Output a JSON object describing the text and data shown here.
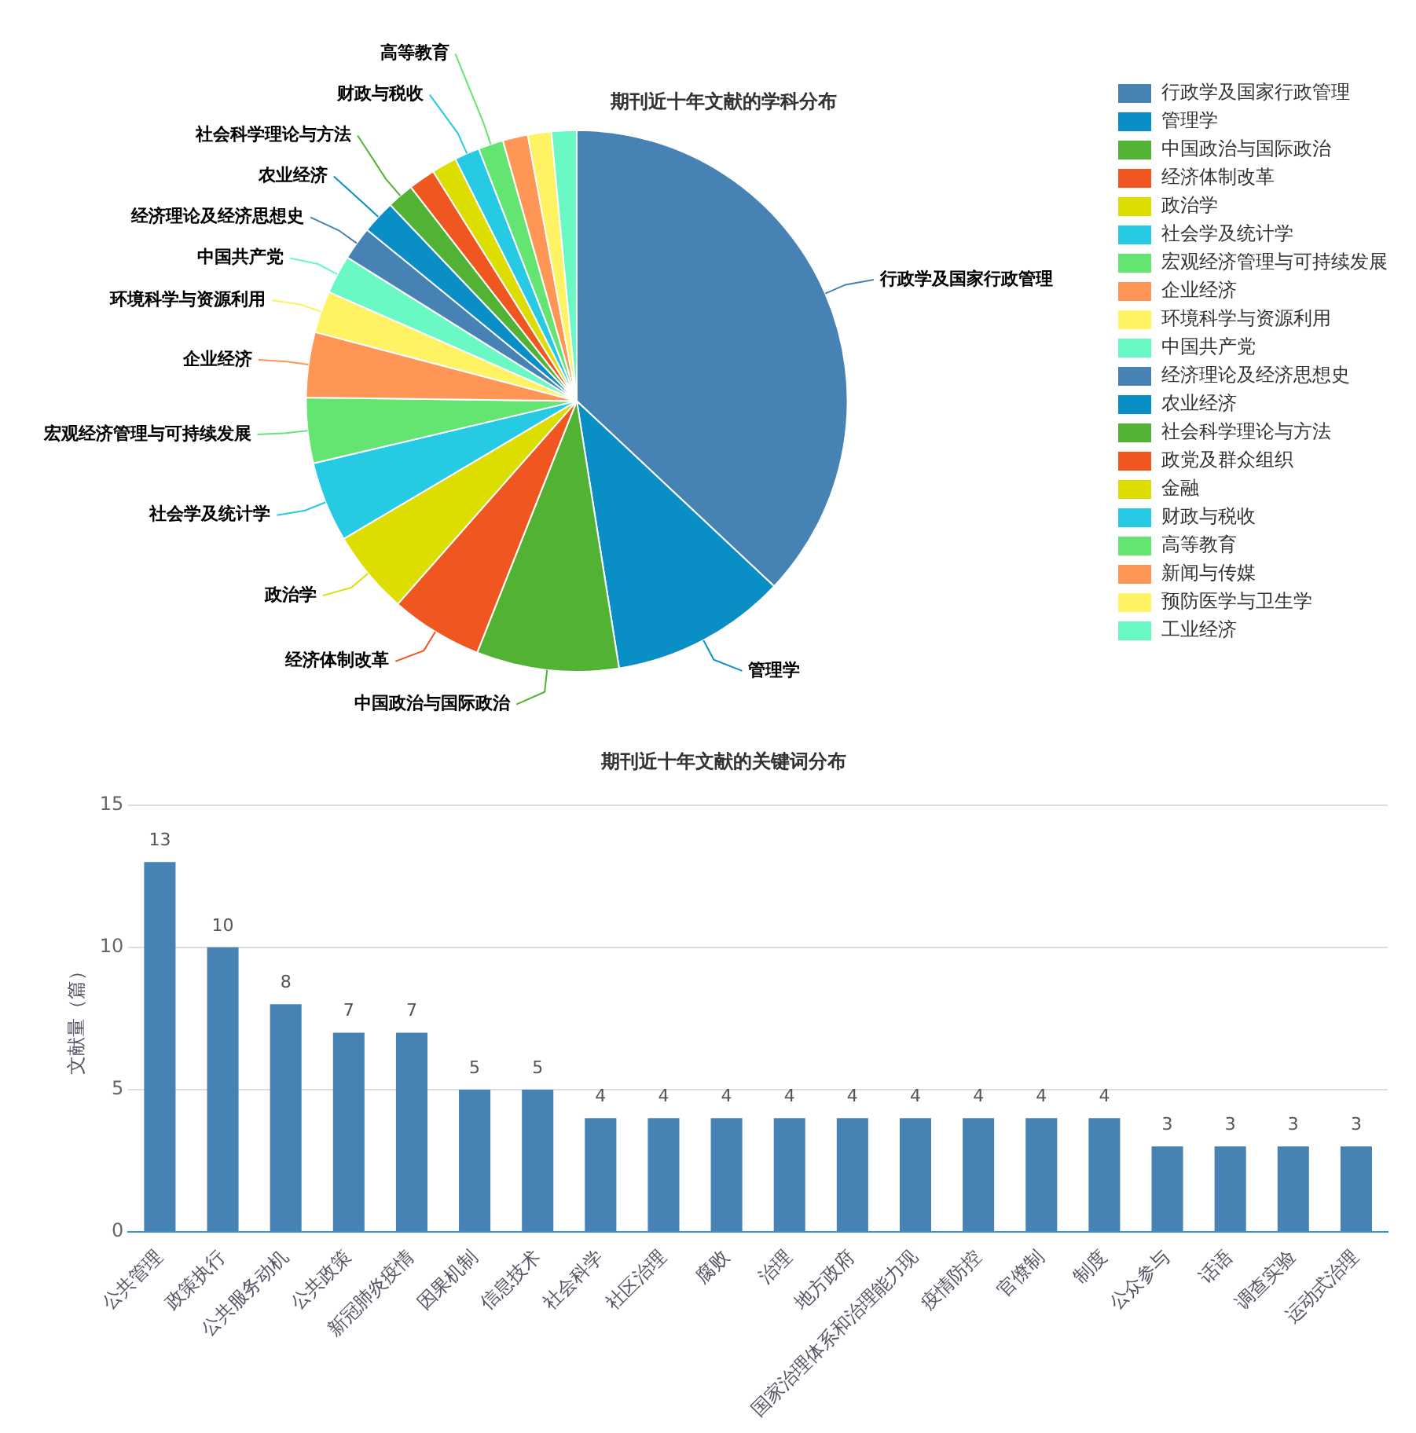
{
  "chart_data": [
    {
      "type": "pie",
      "title": "期刊近十年文献的学科分布",
      "legend": "right",
      "categories": [
        "行政学及国家行政管理",
        "管理学",
        "中国政治与国际政治",
        "经济体制改革",
        "政治学",
        "社会学及统计学",
        "宏观经济管理与可持续发展",
        "企业经济",
        "环境科学与资源利用",
        "中国共产党",
        "经济理论及经济思想史",
        "农业经济",
        "社会科学理论与方法",
        "政党及群众组织",
        "金融",
        "财政与税收",
        "高等教育",
        "新闻与传媒",
        "预防医学与卫生学",
        "工业经济"
      ],
      "values": [
        37,
        10.5,
        8.5,
        5.5,
        5,
        4.8,
        3.9,
        3.9,
        2.5,
        2.3,
        2,
        2,
        1.6,
        1.6,
        1.5,
        1.5,
        1.5,
        1.5,
        1.4,
        1.5
      ],
      "colors": [
        "#4682b4",
        "#098ec6",
        "#51b233",
        "#ef5620",
        "#dddd00",
        "#26cae3",
        "#64e572",
        "#ff9655",
        "#fff263",
        "#6af9c4",
        "#4682b4",
        "#098ec6",
        "#51b233",
        "#ef5620",
        "#dddd00",
        "#26cae3",
        "#64e572",
        "#ff9655",
        "#fff263",
        "#6af9c4"
      ],
      "value_labels": [
        "行政学及国家行政管理",
        "管理学",
        "中国政治与国际政治",
        "经济体制改革",
        "政治学",
        "社会学及统计学",
        "宏观经济管理与可持续发展",
        "企业经济",
        "环境科学与资源利用",
        "中国共产党",
        "经济理论及经济思想史",
        "农业经济",
        "社会科学理论与方法",
        null,
        null,
        "财政与税收",
        "高等教育",
        null,
        null,
        null
      ]
    },
    {
      "type": "bar",
      "title": "期刊近十年文献的关键词分布",
      "ylabel": "文献量（篇）",
      "categories": [
        "公共管理",
        "政策执行",
        "公共服务动机",
        "公共政策",
        "新冠肺炎疫情",
        "因果机制",
        "信息技术",
        "社会科学",
        "社区治理",
        "腐败",
        "治理",
        "地方政府",
        "国家治理体系和治理能力现",
        "疫情防控",
        "官僚制",
        "制度",
        "公众参与",
        "话语",
        "调查实验",
        "运动式治理"
      ],
      "values": [
        13,
        10,
        8,
        7,
        7,
        5,
        5,
        4,
        4,
        4,
        4,
        4,
        4,
        4,
        4,
        4,
        3,
        3,
        3,
        3
      ],
      "color": "#4682b4",
      "ylim": [
        0,
        15
      ],
      "yticks": [
        0,
        5,
        10,
        15
      ],
      "grid": "y",
      "data_labels": true
    }
  ]
}
